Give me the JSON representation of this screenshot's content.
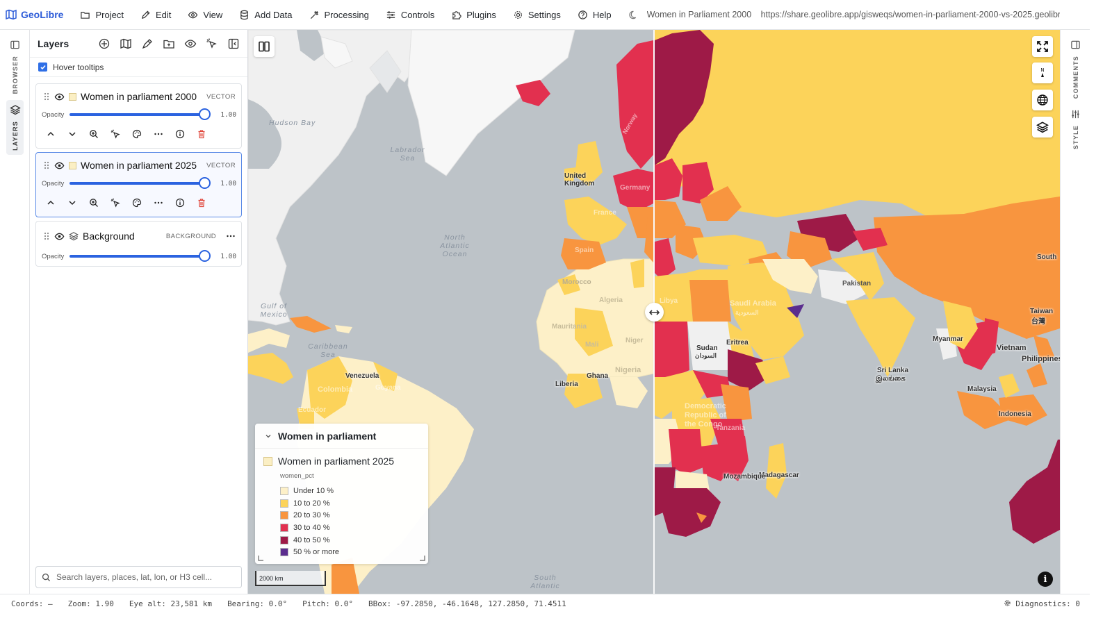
{
  "app": {
    "name": "GeoLibre"
  },
  "menu": [
    {
      "label": "Project",
      "icon": "folder-icon"
    },
    {
      "label": "Edit",
      "icon": "pencil-icon"
    },
    {
      "label": "View",
      "icon": "eye-icon"
    },
    {
      "label": "Add Data",
      "icon": "database-icon"
    },
    {
      "label": "Processing",
      "icon": "tool-icon"
    },
    {
      "label": "Controls",
      "icon": "sliders-icon"
    },
    {
      "label": "Plugins",
      "icon": "puzzle-icon"
    },
    {
      "label": "Settings",
      "icon": "gear-icon"
    },
    {
      "label": "Help",
      "icon": "help-icon"
    }
  ],
  "project_title": "Women in Parliament 2000 v",
  "share_url": "https://share.geolibre.app/gisweqs/women-in-parliament-2000-vs-2025.geolibr...",
  "left_rail": {
    "browser": "BROWSER",
    "layers": "LAYERS"
  },
  "right_rail": {
    "comments": "COMMENTS",
    "style": "STYLE"
  },
  "panel": {
    "title": "Layers",
    "hover_tooltips": "Hover tooltips",
    "opacity_label": "Opacity",
    "layers": [
      {
        "name": "Women in parliament 2000",
        "type": "VECTOR",
        "opacity": "1.00",
        "opacity_level": 1.0
      },
      {
        "name": "Women in parliament 2025",
        "type": "VECTOR",
        "opacity": "1.00",
        "opacity_level": 1.0
      },
      {
        "name": "Background",
        "type": "BACKGROUND",
        "opacity": "1.00",
        "opacity_level": 1.0
      }
    ],
    "search_placeholder": "Search layers, places, lat, lon, or H3 cell..."
  },
  "map": {
    "ocean_labels": [
      "Hudson Bay",
      "Labrador Sea",
      "North Atlantic Ocean",
      "Gulf of Mexico",
      "Caribbean Sea",
      "South Atlantic"
    ],
    "country_labels": [
      "United Kingdom",
      "France",
      "Spain",
      "Germany",
      "Morocco",
      "Algeria",
      "Mauritania",
      "Mali",
      "Niger",
      "Nigeria",
      "Ghana",
      "Liberia",
      "Venezuela",
      "Colombia",
      "Sudan",
      "السودان",
      "Eritrea",
      "Saudi Arabia",
      "السعودية",
      "Pakistan",
      "Democratic Republic of the Congo",
      "Tanzania",
      "Madagascar",
      "Mozambique",
      "Myanmar",
      "Philippines",
      "Taiwan",
      "台灣",
      "Sri Lanka",
      "இலங்கை",
      "Malaysia",
      "Indonesia",
      "Norway",
      "Libya",
      "Ecuador",
      "Guyana",
      "Vietnam",
      "South"
    ],
    "scale_label": "2000 km",
    "colors": {
      "ocean": "#bdc3c8",
      "land_base": "#f2f2f2",
      "c1": "#fdf0c8",
      "c2": "#fcd35a",
      "c3": "#f8953f",
      "c4": "#e2304f",
      "c5": "#9e1a47",
      "c6": "#5b2d8e"
    }
  },
  "legend": {
    "title": "Women in parliament",
    "layer": "Women in parliament 2025",
    "field": "women_pct",
    "classes": [
      {
        "label": "Under 10 %",
        "color": "#fdf0c8"
      },
      {
        "label": "10 to 20 %",
        "color": "#fcd35a"
      },
      {
        "label": "20 to 30 %",
        "color": "#f8953f"
      },
      {
        "label": "30 to 40 %",
        "color": "#e2304f"
      },
      {
        "label": "40 to 50 %",
        "color": "#9e1a47"
      },
      {
        "label": "50 % or more",
        "color": "#5b2d8e"
      }
    ]
  },
  "status": {
    "coords": "Coords: —",
    "zoom": "Zoom: 1.90",
    "eye_alt": "Eye alt: 23,581 km",
    "bearing": "Bearing: 0.0°",
    "pitch": "Pitch: 0.0°",
    "bbox": "BBox: -97.2850, -46.1648, 127.2850, 71.4511",
    "diagnostics": "Diagnostics: 0"
  }
}
